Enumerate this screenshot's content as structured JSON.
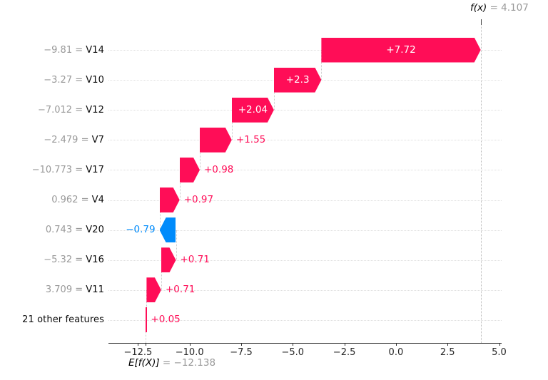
{
  "chart_data": {
    "type": "waterfall",
    "description": "SHAP-style waterfall plot of feature contributions",
    "fx": {
      "name": "f(x)",
      "equals_value": "= 4.107",
      "value": 4.107
    },
    "expected": {
      "name": "E[f(X)]",
      "equals_value": "= −12.138",
      "value": -12.138
    },
    "xlim": [
      -13.93,
      5.12
    ],
    "x_ticks": [
      {
        "value": -12.5,
        "label": "−12.5"
      },
      {
        "value": -10.0,
        "label": "−10.0"
      },
      {
        "value": -7.5,
        "label": "−7.5"
      },
      {
        "value": -5.0,
        "label": "−5.0"
      },
      {
        "value": -2.5,
        "label": "−2.5"
      },
      {
        "value": 0.0,
        "label": "0.0"
      },
      {
        "value": 2.5,
        "label": "2.5"
      },
      {
        "value": 5.0,
        "label": "5.0"
      }
    ],
    "rows": [
      {
        "feature": "V14",
        "feature_value": "−9.81",
        "contribution": 7.72,
        "label": "+7.72"
      },
      {
        "feature": "V10",
        "feature_value": "−3.27",
        "contribution": 2.3,
        "label": "+2.3"
      },
      {
        "feature": "V12",
        "feature_value": "−7.012",
        "contribution": 2.04,
        "label": "+2.04"
      },
      {
        "feature": "V7",
        "feature_value": "−2.479",
        "contribution": 1.55,
        "label": "+1.55"
      },
      {
        "feature": "V17",
        "feature_value": "−10.773",
        "contribution": 0.98,
        "label": "+0.98"
      },
      {
        "feature": "V4",
        "feature_value": "0.962",
        "contribution": 0.97,
        "label": "+0.97"
      },
      {
        "feature": "V20",
        "feature_value": "0.743",
        "contribution": -0.79,
        "label": "−0.79"
      },
      {
        "feature": "V16",
        "feature_value": "−5.32",
        "contribution": 0.71,
        "label": "+0.71"
      },
      {
        "feature": "V11",
        "feature_value": "3.709",
        "contribution": 0.71,
        "label": "+0.71"
      },
      {
        "feature": "21 other features",
        "feature_value": "",
        "contribution": 0.05,
        "label": "+0.05"
      }
    ],
    "colors": {
      "positive": "#ff0d57",
      "negative": "#008bfb"
    }
  }
}
